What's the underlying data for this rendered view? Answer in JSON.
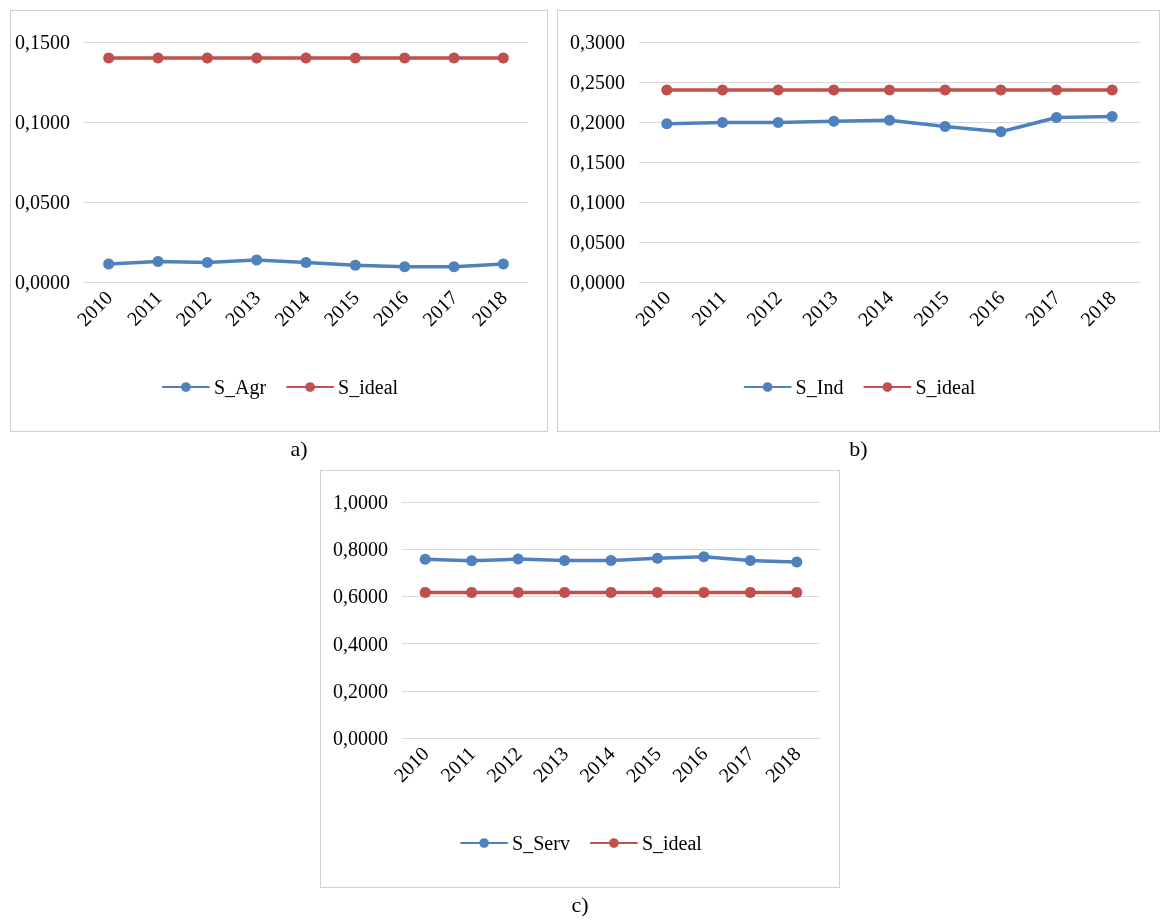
{
  "chart_data": [
    {
      "type": "line",
      "categories": [
        "2010",
        "2011",
        "2012",
        "2013",
        "2014",
        "2015",
        "2016",
        "2017",
        "2018"
      ],
      "series": [
        {
          "name": "S_Agr",
          "color": "#4f81bd",
          "values": [
            0.0113,
            0.0128,
            0.0122,
            0.0137,
            0.0122,
            0.0104,
            0.0095,
            0.0095,
            0.0113
          ]
        },
        {
          "name": "S_ideal",
          "color": "#c0504d",
          "values": [
            0.14,
            0.14,
            0.14,
            0.14,
            0.14,
            0.14,
            0.14,
            0.14,
            0.14
          ]
        }
      ],
      "ylim": [
        0,
        0.15
      ],
      "yticks": [
        {
          "value": 0,
          "label": "0,0000"
        },
        {
          "value": 0.05,
          "label": "0,0500"
        },
        {
          "value": 0.1,
          "label": "0,1000"
        },
        {
          "value": 0.15,
          "label": "0,1500"
        }
      ],
      "grid": "y",
      "legend": "bottom",
      "marker": "circle",
      "line_style": "solid",
      "annotations": [
        "a)"
      ]
    },
    {
      "type": "line",
      "categories": [
        "2010",
        "2011",
        "2012",
        "2013",
        "2014",
        "2015",
        "2016",
        "2017",
        "2018"
      ],
      "series": [
        {
          "name": "S_Ind",
          "color": "#4f81bd",
          "values": [
            0.1977,
            0.1995,
            0.1995,
            0.2009,
            0.2023,
            0.1944,
            0.1879,
            0.2056,
            0.207
          ]
        },
        {
          "name": "S_ideal",
          "color": "#c0504d",
          "values": [
            0.24,
            0.24,
            0.24,
            0.24,
            0.24,
            0.24,
            0.24,
            0.24,
            0.24
          ]
        }
      ],
      "ylim": [
        0,
        0.3
      ],
      "yticks": [
        {
          "value": 0,
          "label": "0,0000"
        },
        {
          "value": 0.05,
          "label": "0,0500"
        },
        {
          "value": 0.1,
          "label": "0,1000"
        },
        {
          "value": 0.15,
          "label": "0,1500"
        },
        {
          "value": 0.2,
          "label": "0,2000"
        },
        {
          "value": 0.25,
          "label": "0,2500"
        },
        {
          "value": 0.3,
          "label": "0,3000"
        }
      ],
      "grid": "y",
      "legend": "bottom",
      "marker": "circle",
      "line_style": "solid",
      "annotations": [
        "b)"
      ]
    },
    {
      "type": "line",
      "categories": [
        "2010",
        "2011",
        "2012",
        "2013",
        "2014",
        "2015",
        "2016",
        "2017",
        "2018"
      ],
      "series": [
        {
          "name": "S_Serv",
          "color": "#4f81bd",
          "values": [
            0.757,
            0.751,
            0.758,
            0.752,
            0.752,
            0.762,
            0.768,
            0.752,
            0.746
          ]
        },
        {
          "name": "S_ideal",
          "color": "#c0504d",
          "values": [
            0.617,
            0.617,
            0.617,
            0.617,
            0.617,
            0.617,
            0.617,
            0.617,
            0.617
          ]
        }
      ],
      "ylim": [
        0,
        1
      ],
      "yticks": [
        {
          "value": 0,
          "label": "0,0000"
        },
        {
          "value": 0.2,
          "label": "0,2000"
        },
        {
          "value": 0.4,
          "label": "0,4000"
        },
        {
          "value": 0.6,
          "label": "0,6000"
        },
        {
          "value": 0.8,
          "label": "0,8000"
        },
        {
          "value": 1,
          "label": "1,0000"
        }
      ],
      "grid": "y",
      "legend": "bottom",
      "marker": "circle",
      "line_style": "solid",
      "annotations": [
        "c)"
      ]
    }
  ]
}
